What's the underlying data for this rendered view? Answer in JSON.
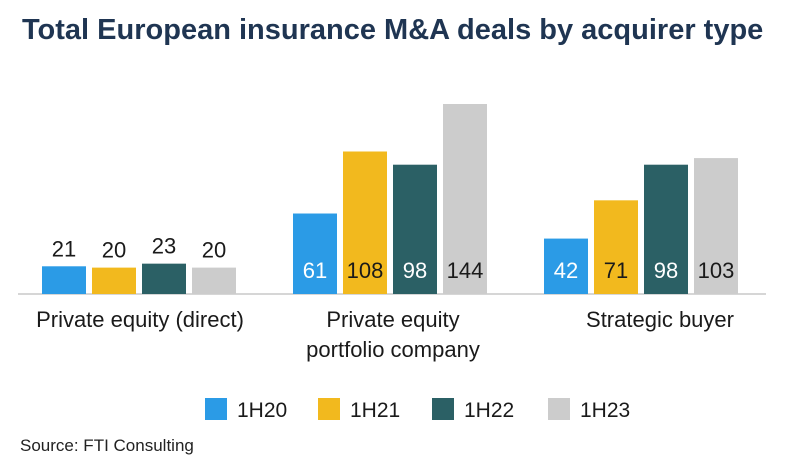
{
  "chart_data": {
    "type": "bar",
    "title": "Total European insurance M&A deals by acquirer type",
    "categories": [
      [
        "Private equity (direct)"
      ],
      [
        "Private equity",
        "portfolio company"
      ],
      [
        "Strategic buyer"
      ]
    ],
    "series": [
      {
        "name": "1H20",
        "color": "#2b9be6",
        "values": [
          21,
          61,
          42
        ]
      },
      {
        "name": "1H21",
        "color": "#f2b91e",
        "values": [
          20,
          108,
          71
        ]
      },
      {
        "name": "1H22",
        "color": "#2b6065",
        "values": [
          23,
          98,
          98
        ]
      },
      {
        "name": "1H23",
        "color": "#cccccc",
        "values": [
          20,
          144,
          103
        ]
      }
    ],
    "ylim": [
      0,
      144
    ],
    "grid": false,
    "legend_position": "bottom",
    "source": "Source: FTI Consulting"
  }
}
